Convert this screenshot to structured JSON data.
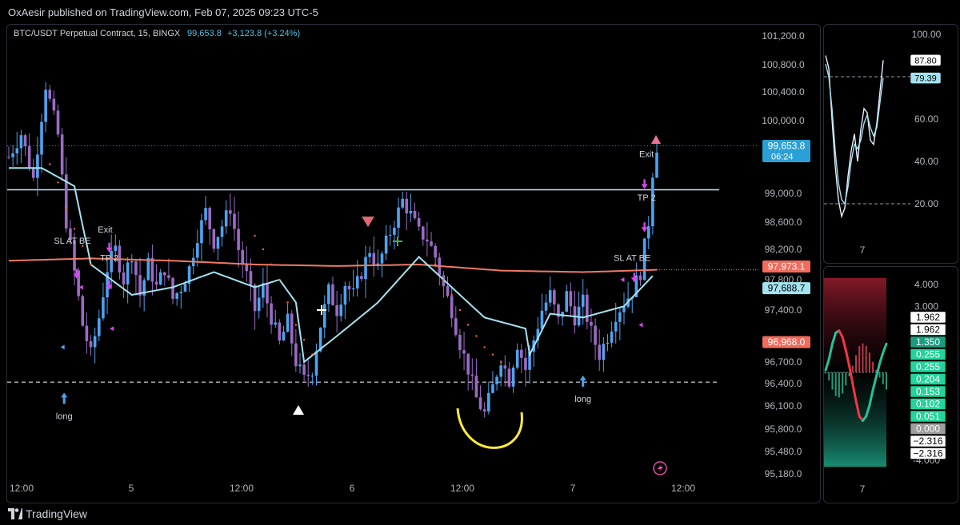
{
  "header": {
    "published": "OxAesir published on TradingView.com, Feb 07, 2025 09:23 UTC-5"
  },
  "footer": {
    "brand": "TradingView"
  },
  "colors": {
    "background": "#131722",
    "up": "#4ea3f0",
    "down": "#9b6bc4",
    "ma_red": "#f07a63",
    "band": "#a3e3ef",
    "level_line": "#cfe8ff",
    "price_tag": "#2aa0d6",
    "red_tag": "#f26b5b",
    "dotted_red": "#ff6b3d",
    "highlight_arc": "#ffeb3b",
    "signal_magenta": "#d946ef"
  },
  "chart_data": [
    {
      "type": "candlestick",
      "symbol_label": "BTC/USDT Perpetual Contract, 15, BINGX",
      "last_price": "99,653.8",
      "change": "+3,123.8 (+3.24%)",
      "countdown": "06:24",
      "y_ticks": [
        "101,200.0",
        "100,800.0",
        "100,400.0",
        "100,000.0",
        "99,000.0",
        "98,600.0",
        "98,200.0",
        "97,800.0",
        "97,400.0",
        "96,700.0",
        "96,400.0",
        "96,100.0",
        "95,800.0",
        "95,480.0",
        "95,180.0"
      ],
      "price_tags": [
        {
          "label": "99,653.8",
          "value": 99653.8,
          "color": "#2aa0d6"
        },
        {
          "label": "97,973.1",
          "value": 97973.1,
          "color": "#f26b5b"
        },
        {
          "label": "97,688.7",
          "value": 97688.7,
          "color": "#a3e3ef"
        },
        {
          "label": "96,968.0",
          "value": 96968.0,
          "color": "#f26b5b"
        }
      ],
      "x_ticks": [
        "12:00",
        "5",
        "12:00",
        "6",
        "12:00",
        "7",
        "12:00"
      ],
      "horizontal_levels": [
        {
          "value": 99050,
          "style": "solid"
        },
        {
          "value": 96420,
          "style": "dashed"
        }
      ],
      "close_path": [
        [
          0,
          99500
        ],
        [
          3,
          99820
        ],
        [
          6,
          99200
        ],
        [
          9,
          100500
        ],
        [
          12,
          99800
        ],
        [
          14,
          98600
        ],
        [
          16,
          97900
        ],
        [
          18,
          97200
        ],
        [
          20,
          96800
        ],
        [
          22,
          97300
        ],
        [
          24,
          97950
        ],
        [
          26,
          98200
        ],
        [
          28,
          97800
        ],
        [
          30,
          98150
        ],
        [
          32,
          97600
        ],
        [
          34,
          98000
        ],
        [
          36,
          97700
        ],
        [
          38,
          97950
        ],
        [
          40,
          97550
        ],
        [
          42,
          97700
        ],
        [
          44,
          97950
        ],
        [
          46,
          98400
        ],
        [
          48,
          98750
        ],
        [
          50,
          98300
        ],
        [
          52,
          98550
        ],
        [
          54,
          98800
        ],
        [
          56,
          98200
        ],
        [
          58,
          97850
        ],
        [
          60,
          97400
        ],
        [
          62,
          97700
        ],
        [
          64,
          97300
        ],
        [
          66,
          96950
        ],
        [
          68,
          97250
        ],
        [
          70,
          96700
        ],
        [
          72,
          96450
        ],
        [
          74,
          96600
        ],
        [
          76,
          97200
        ],
        [
          78,
          97650
        ],
        [
          80,
          97400
        ],
        [
          82,
          97750
        ],
        [
          84,
          97600
        ],
        [
          86,
          97900
        ],
        [
          88,
          98200
        ],
        [
          90,
          97950
        ],
        [
          92,
          98300
        ],
        [
          94,
          98600
        ],
        [
          96,
          98900
        ],
        [
          98,
          98700
        ],
        [
          100,
          98450
        ],
        [
          102,
          98350
        ],
        [
          104,
          98100
        ],
        [
          106,
          97700
        ],
        [
          108,
          97400
        ],
        [
          110,
          96950
        ],
        [
          112,
          96600
        ],
        [
          114,
          96200
        ],
        [
          116,
          96000
        ],
        [
          118,
          96350
        ],
        [
          120,
          96750
        ],
        [
          122,
          96450
        ],
        [
          124,
          96950
        ],
        [
          126,
          96600
        ],
        [
          128,
          97000
        ],
        [
          130,
          97400
        ],
        [
          132,
          97600
        ],
        [
          134,
          97250
        ],
        [
          136,
          97600
        ],
        [
          138,
          97300
        ],
        [
          140,
          97500
        ],
        [
          142,
          97100
        ],
        [
          144,
          96800
        ],
        [
          146,
          97050
        ],
        [
          148,
          97350
        ],
        [
          150,
          97500
        ],
        [
          152,
          97650
        ],
        [
          154,
          97900
        ],
        [
          156,
          98600
        ],
        [
          157,
          99300
        ],
        [
          158,
          99650
        ]
      ],
      "bands": {
        "ma_red_path": [
          [
            0,
            98050
          ],
          [
            20,
            98080
          ],
          [
            40,
            98050
          ],
          [
            60,
            98000
          ],
          [
            80,
            97980
          ],
          [
            100,
            98000
          ],
          [
            120,
            97920
          ],
          [
            140,
            97900
          ],
          [
            158,
            97930
          ]
        ],
        "cyan_path": [
          [
            0,
            99350
          ],
          [
            8,
            99350
          ],
          [
            16,
            99100
          ],
          [
            20,
            98000
          ],
          [
            30,
            97600
          ],
          [
            40,
            97700
          ],
          [
            50,
            97900
          ],
          [
            60,
            97700
          ],
          [
            66,
            97800
          ],
          [
            70,
            97500
          ],
          [
            72,
            96700
          ],
          [
            80,
            97050
          ],
          [
            90,
            97500
          ],
          [
            100,
            98100
          ],
          [
            106,
            97800
          ],
          [
            116,
            97300
          ],
          [
            126,
            97150
          ],
          [
            127,
            96800
          ],
          [
            132,
            97350
          ],
          [
            140,
            97300
          ],
          [
            150,
            97450
          ],
          [
            157,
            97850
          ]
        ]
      },
      "signals": [
        {
          "text": "long",
          "x": 13.5,
          "y": 96150,
          "kind": "arrow-up"
        },
        {
          "text": "long",
          "x": 140,
          "y": 96380,
          "kind": "arrow-up"
        },
        {
          "text": "SL AT BE",
          "x": 15.5,
          "y": 98280,
          "kind": "label"
        },
        {
          "text": "Exit",
          "x": 23.5,
          "y": 98450,
          "kind": "label"
        },
        {
          "text": "TP 2",
          "x": 24.5,
          "y": 98050,
          "kind": "label"
        },
        {
          "text": "SL AT BE",
          "x": 152,
          "y": 98050,
          "kind": "label"
        },
        {
          "text": "Exit",
          "x": 155.5,
          "y": 99500,
          "kind": "label"
        },
        {
          "text": "TP 2",
          "x": 155.5,
          "y": 98900,
          "kind": "label"
        }
      ]
    },
    {
      "type": "line",
      "y_ticks": [
        "100.00",
        "60.00",
        "40.00",
        "20.00"
      ],
      "x_ticks": [
        "7"
      ],
      "value_tags": [
        {
          "label": "87.80",
          "value": 87.8
        },
        {
          "label": "79.39",
          "value": 79.39
        }
      ],
      "levels": [
        80,
        20
      ],
      "series": [
        {
          "name": "",
          "values": [
            90,
            84,
            60,
            38,
            22,
            14,
            18,
            33,
            45,
            53,
            40,
            55,
            65,
            63,
            50,
            48,
            58,
            73,
            87.8
          ]
        },
        {
          "name": "",
          "values": [
            86,
            80,
            65,
            45,
            30,
            22,
            20,
            28,
            40,
            48,
            46,
            50,
            58,
            62,
            56,
            52,
            56,
            68,
            79.39
          ]
        }
      ]
    },
    {
      "type": "line",
      "y_ticks": [
        "4.000",
        "3.000",
        "-4.000"
      ],
      "x_ticks": [
        "7"
      ],
      "label": "...",
      "value_tags": [
        {
          "label": "1.962"
        },
        {
          "label": "1.962"
        },
        {
          "label": "1.350"
        },
        {
          "label": "0.255"
        },
        {
          "label": "0.255"
        },
        {
          "label": "0.204"
        },
        {
          "label": "0.153"
        },
        {
          "label": "0.102"
        },
        {
          "label": "0.051"
        },
        {
          "label": "0.000"
        },
        {
          "label": "−2.316"
        },
        {
          "label": "−2.316"
        }
      ],
      "series": [
        {
          "name": "",
          "values": [
            0.1,
            0.6,
            1.3,
            1.8,
            1.9,
            1.6,
            1.0,
            0.3,
            -0.5,
            -1.3,
            -2.0,
            -2.2,
            -2.0,
            -1.5,
            -0.8,
            -0.2,
            0.4,
            0.9,
            1.3
          ]
        }
      ]
    }
  ]
}
